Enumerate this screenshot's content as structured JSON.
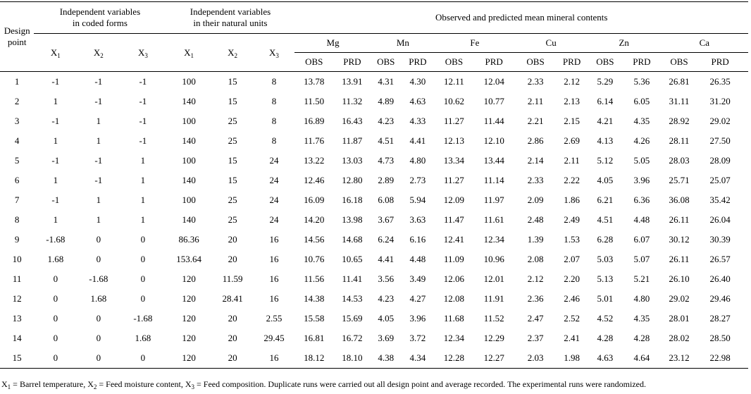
{
  "header": {
    "design_point": [
      "Design",
      "point"
    ],
    "coded_group": [
      "Independent variables",
      "in coded forms"
    ],
    "natural_group": [
      "Independent variables",
      "in their natural units"
    ],
    "mineral_group": "Observed and predicted mean mineral contents",
    "var_letter": "X",
    "var_subs": [
      "1",
      "2",
      "3"
    ],
    "minerals": [
      "Mg",
      "Mn",
      "Fe",
      "Cu",
      "Zn",
      "Ca"
    ],
    "obs_label": "OBS",
    "prd_label": "PRD"
  },
  "rows": [
    [
      "1",
      "-1",
      "-1",
      "-1",
      "100",
      "15",
      "8",
      "13.78",
      "13.91",
      "4.31",
      "4.30",
      "12.11",
      "12.04",
      "2.33",
      "2.12",
      "5.29",
      "5.36",
      "26.81",
      "26.35"
    ],
    [
      "2",
      "1",
      "-1",
      "-1",
      "140",
      "15",
      "8",
      "11.50",
      "11.32",
      "4.89",
      "4.63",
      "10.62",
      "10.77",
      "2.11",
      "2.13",
      "6.14",
      "6.05",
      "31.11",
      "31.20"
    ],
    [
      "3",
      "-1",
      "1",
      "-1",
      "100",
      "25",
      "8",
      "16.89",
      "16.43",
      "4.23",
      "4.33",
      "11.27",
      "11.44",
      "2.21",
      "2.15",
      "4.21",
      "4.35",
      "28.92",
      "29.02"
    ],
    [
      "4",
      "1",
      "1",
      "-1",
      "140",
      "25",
      "8",
      "11.76",
      "11.87",
      "4.51",
      "4.41",
      "12.13",
      "12.10",
      "2.86",
      "2.69",
      "4.13",
      "4.26",
      "28.11",
      "27.50"
    ],
    [
      "5",
      "-1",
      "-1",
      "1",
      "100",
      "15",
      "24",
      "13.22",
      "13.03",
      "4.73",
      "4.80",
      "13.34",
      "13.44",
      "2.14",
      "2.11",
      "5.12",
      "5.05",
      "28.03",
      "28.09"
    ],
    [
      "6",
      "1",
      "-1",
      "1",
      "140",
      "15",
      "24",
      "12.46",
      "12.80",
      "2.89",
      "2.73",
      "11.27",
      "11.14",
      "2.33",
      "2.22",
      "4.05",
      "3.96",
      "25.71",
      "25.07"
    ],
    [
      "7",
      "-1",
      "1",
      "1",
      "100",
      "25",
      "24",
      "16.09",
      "16.18",
      "6.08",
      "5.94",
      "12.09",
      "11.97",
      "2.09",
      "1.86",
      "6.21",
      "6.36",
      "36.08",
      "35.42"
    ],
    [
      "8",
      "1",
      "1",
      "1",
      "140",
      "25",
      "24",
      "14.20",
      "13.98",
      "3.67",
      "3.63",
      "11.47",
      "11.61",
      "2.48",
      "2.49",
      "4.51",
      "4.48",
      "26.11",
      "26.04"
    ],
    [
      "9",
      "-1.68",
      "0",
      "0",
      "86.36",
      "20",
      "16",
      "14.56",
      "14.68",
      "6.24",
      "6.16",
      "12.41",
      "12.34",
      "1.39",
      "1.53",
      "6.28",
      "6.07",
      "30.12",
      "30.39"
    ],
    [
      "10",
      "1.68",
      "0",
      "0",
      "153.64",
      "20",
      "16",
      "10.76",
      "10.65",
      "4.41",
      "4.48",
      "11.09",
      "10.96",
      "2.08",
      "2.07",
      "5.03",
      "5.07",
      "26.11",
      "26.57"
    ],
    [
      "11",
      "0",
      "-1.68",
      "0",
      "120",
      "11.59",
      "16",
      "11.56",
      "11.41",
      "3.56",
      "3.49",
      "12.06",
      "12.01",
      "2.12",
      "2.20",
      "5.13",
      "5.21",
      "26.10",
      "26.40"
    ],
    [
      "12",
      "0",
      "1.68",
      "0",
      "120",
      "28.41",
      "16",
      "14.38",
      "14.53",
      "4.23",
      "4.27",
      "12.08",
      "11.91",
      "2.36",
      "2.46",
      "5.01",
      "4.80",
      "29.02",
      "29.46"
    ],
    [
      "13",
      "0",
      "0",
      "-1.68",
      "120",
      "20",
      "2.55",
      "15.58",
      "15.69",
      "4.05",
      "3.96",
      "11.68",
      "11.52",
      "2.47",
      "2.52",
      "4.52",
      "4.35",
      "28.01",
      "28.27"
    ],
    [
      "14",
      "0",
      "0",
      "1.68",
      "120",
      "20",
      "29.45",
      "16.81",
      "16.72",
      "3.69",
      "3.72",
      "12.34",
      "12.29",
      "2.37",
      "2.41",
      "4.28",
      "4.28",
      "28.02",
      "28.50"
    ],
    [
      "15",
      "0",
      "0",
      "0",
      "120",
      "20",
      "16",
      "18.12",
      "18.10",
      "4.38",
      "4.34",
      "12.28",
      "12.27",
      "2.03",
      "1.98",
      "4.63",
      "4.64",
      "23.12",
      "22.98"
    ]
  ],
  "footnote": {
    "x1_def": "= Barrel temperature,",
    "x2_def": "= Feed moisture content,",
    "x3_def": "= Feed composition. Duplicate runs were carried out all design point and average recorded. The experimental runs were randomized."
  }
}
